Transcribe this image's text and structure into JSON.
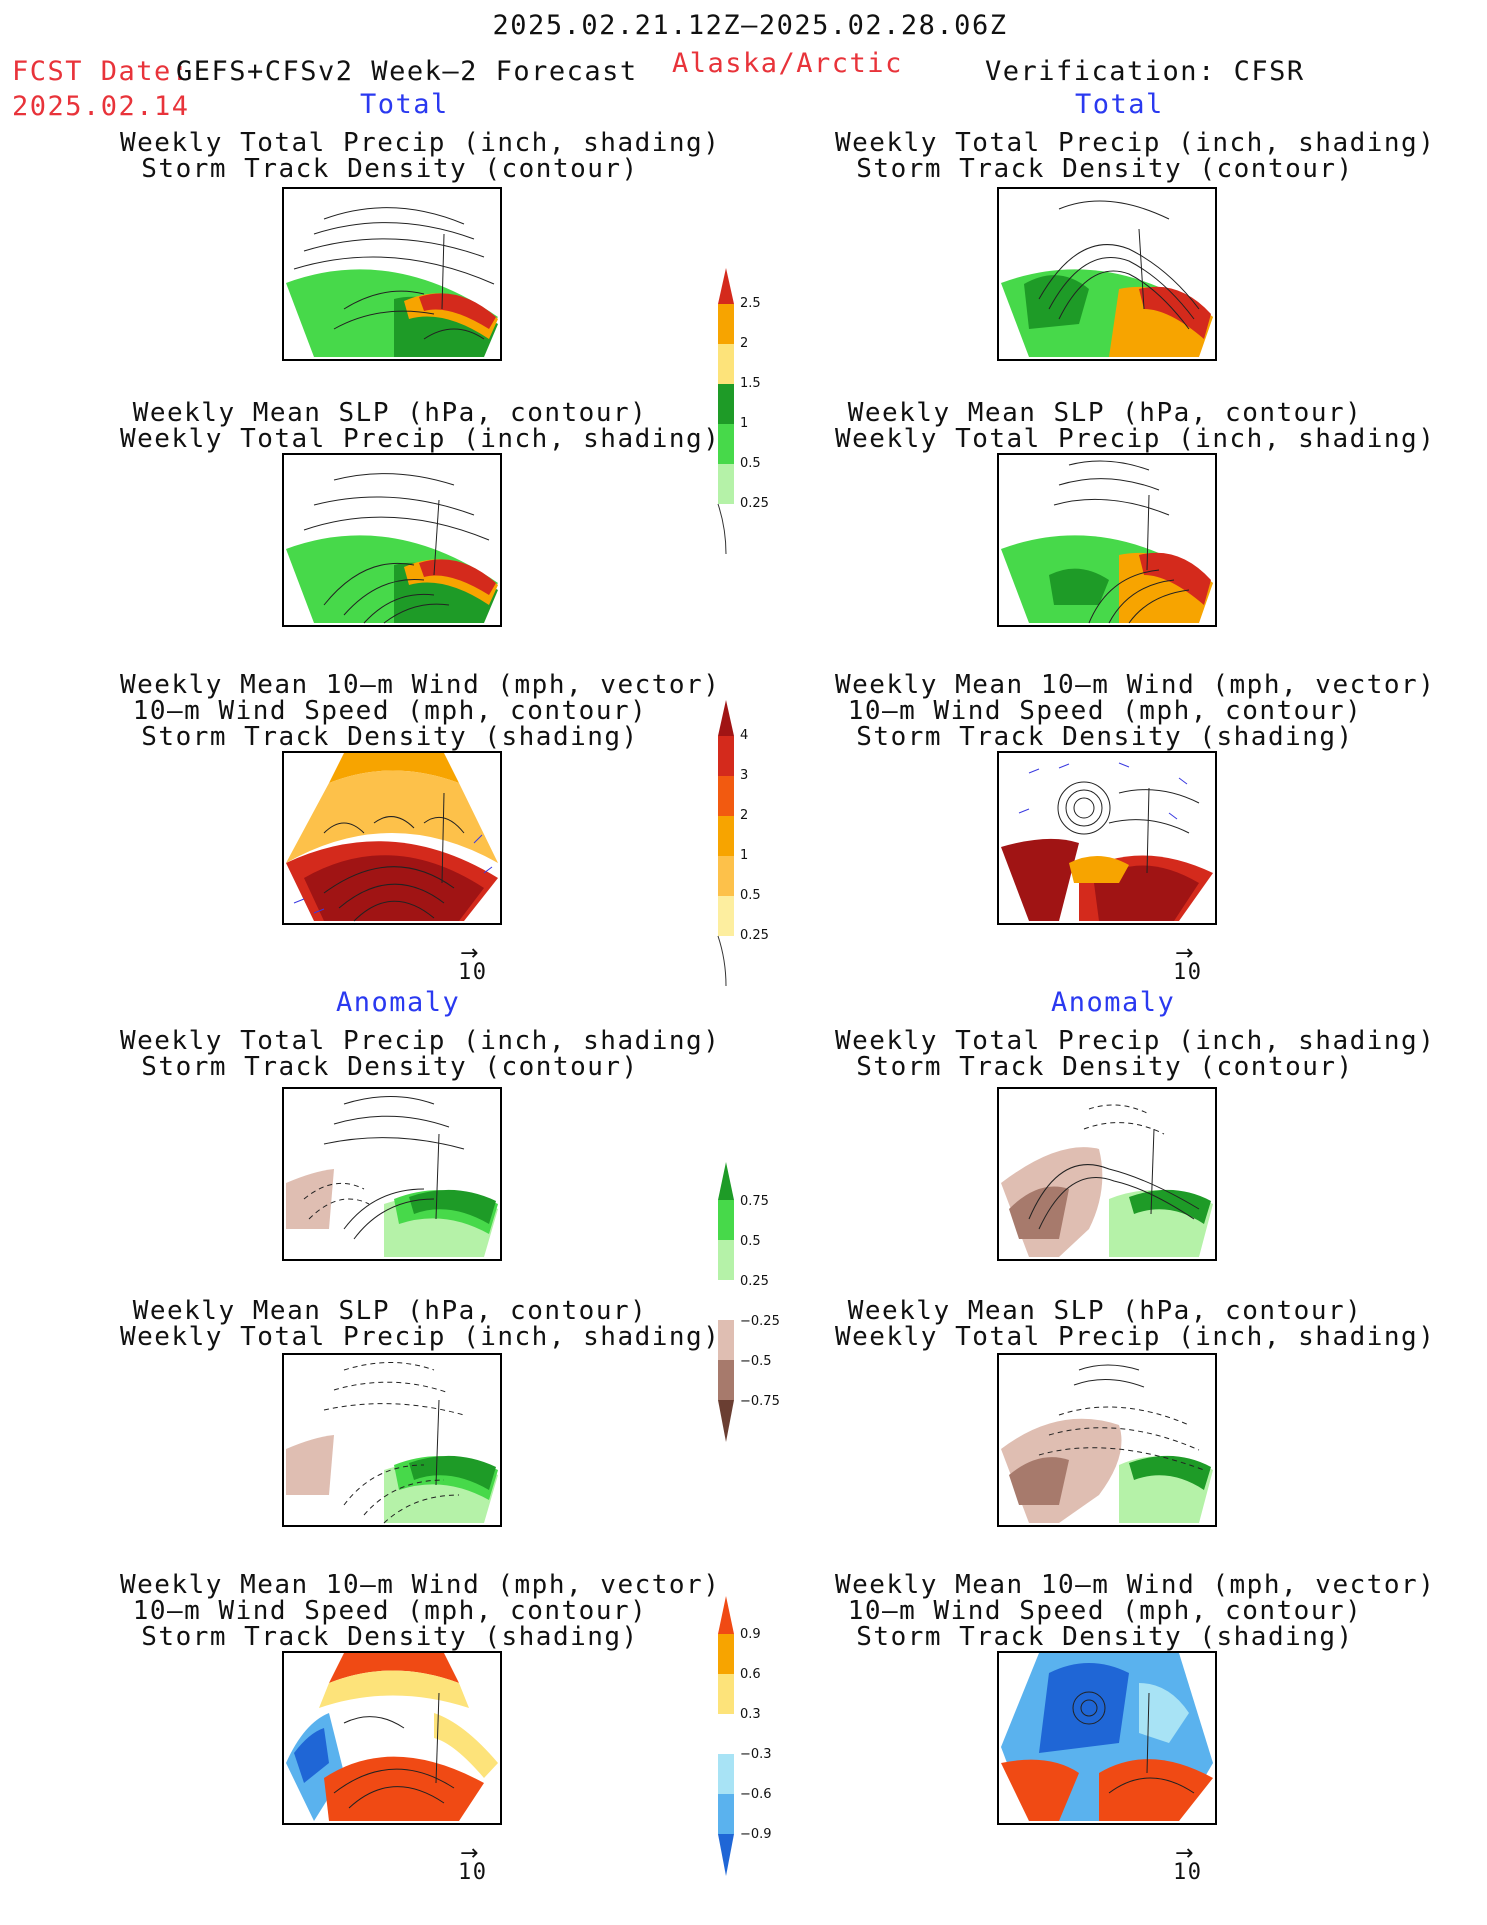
{
  "header": {
    "date_range": "2025.02.21.12Z–2025.02.28.06Z",
    "fcst_label": "FCST Date:",
    "fcst_model": "GEFS+CFSv2 Week–2 Forecast",
    "fcst_date": "2025.02.14",
    "region": "Alaska/Arctic",
    "verification": "Verification: CFSR"
  },
  "sections": {
    "total": "Total",
    "anomaly": "Anomaly"
  },
  "panels": {
    "precip_storm": [
      "Weekly Total Precip (inch, shading)",
      "Storm Track Density (contour)"
    ],
    "slp_precip": [
      "Weekly Mean SLP (hPa, contour)",
      "Weekly Total Precip (inch, shading)"
    ],
    "wind_storm": [
      "Weekly Mean 10–m Wind (mph, vector)",
      "10–m Wind Speed (mph, contour)",
      "Storm Track Density (shading)"
    ]
  },
  "vector_ref": "10",
  "colorbars": {
    "precip_total": {
      "ticks": [
        "2.5",
        "2",
        "1.5",
        "1",
        "0.5",
        "0.25"
      ],
      "colors": [
        "#d42a1c",
        "#f7a400",
        "#fde37a",
        "#1e9b27",
        "#47d94a",
        "#b5f2a8"
      ]
    },
    "storm_total": {
      "ticks": [
        "4",
        "3",
        "2",
        "1",
        "0.5",
        "0.25"
      ],
      "colors": [
        "#a01414",
        "#d42a1c",
        "#f25a10",
        "#f7a400",
        "#fdc14a",
        "#fdee9f"
      ]
    },
    "precip_anom": {
      "ticks": [
        "0.75",
        "0.5",
        "0.25",
        "−0.25",
        "−0.5",
        "−0.75"
      ],
      "colors": [
        "#1e9b27",
        "#47d94a",
        "#b5f2a8",
        "#ffffff",
        "#dfbeb2",
        "#a77a6c",
        "#6a3e32"
      ]
    },
    "storm_anom": {
      "ticks": [
        "0.9",
        "0.6",
        "0.3",
        "−0.3",
        "−0.6",
        "−0.9"
      ],
      "colors": [
        "#f04a14",
        "#f7a400",
        "#fde37a",
        "#ffffff",
        "#a8e3f5",
        "#5ab2ee",
        "#1f66d6"
      ]
    }
  },
  "colors": {
    "title_red": "#e8333a",
    "section_blue": "#2a39f0"
  }
}
